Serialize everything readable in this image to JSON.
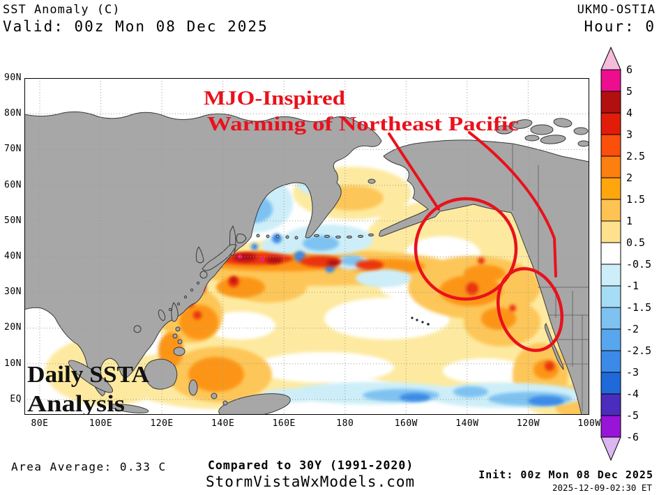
{
  "header": {
    "product_title": "SST Anomaly (C)",
    "valid_line": "Valid: 00z Mon 08 Dec 2025",
    "model_name": "UKMO-OSTIA",
    "hour_line": "Hour: 0"
  },
  "map": {
    "annotation": {
      "line1": "MJO-Inspired",
      "line2": "Warming of Northeast Pacific",
      "color": "#e9111c"
    },
    "overlay_label": {
      "line1": "Daily SSTA",
      "line2": "Analysis"
    },
    "axes": {
      "lat_labels": [
        "90N",
        "80N",
        "70N",
        "60N",
        "50N",
        "40N",
        "30N",
        "20N",
        "10N",
        "EQ"
      ],
      "lon_labels": [
        "80E",
        "100E",
        "120E",
        "140E",
        "160E",
        "180",
        "160W",
        "140W",
        "120W",
        "100W"
      ]
    }
  },
  "colorbar": {
    "units": "C",
    "tick_labels": [
      "6",
      "5",
      "4",
      "3",
      "2.5",
      "2",
      "1.5",
      "1",
      "0.5",
      "-0.5",
      "-1",
      "-1.5",
      "-2",
      "-2.5",
      "-3",
      "-4",
      "-5",
      "-6"
    ],
    "segment_colors": [
      "#ec0e8e",
      "#b2100f",
      "#e11d09",
      "#fb4f0c",
      "#fd7f10",
      "#ffa60f",
      "#fec353",
      "#fee08d",
      "#ffffff",
      "#cdeef8",
      "#a5dcf6",
      "#7ec2f2",
      "#57a6ee",
      "#3b8ae8",
      "#2069d9",
      "#4a2dbc",
      "#9714d8"
    ],
    "over_color": "#f5bcdc",
    "under_color": "#dcb6f0"
  },
  "footer": {
    "area_average": "Area Average: 0.33 C",
    "baseline_note": "Compared to 30Y (1991-2020)",
    "site": "StormVistaWxModels.com",
    "init_line": "Init: 00z Mon 08 Dec 2025",
    "created": "2025-12-09-02:30 ET"
  },
  "colors": {
    "land": "#a7a7a7",
    "coast": "#383838",
    "grid": "#999999"
  }
}
